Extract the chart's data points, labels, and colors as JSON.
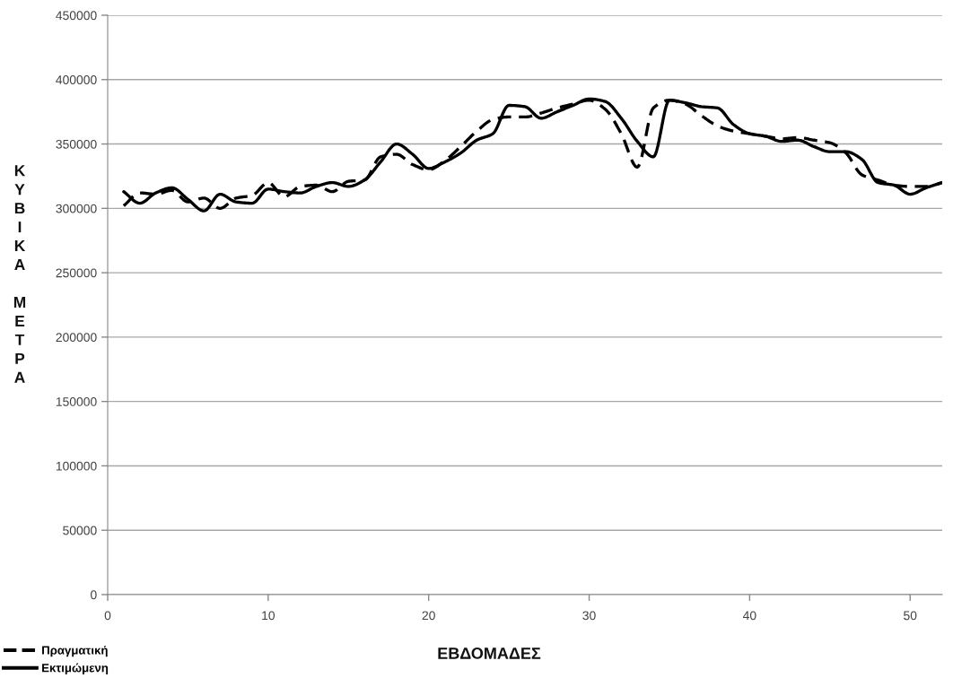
{
  "chart_data": {
    "type": "line",
    "xlabel": "ΕΒΔΟΜΑΔΕΣ",
    "ylabel": "ΚΥΒΙΚΑ ΜΕΤΡΑ",
    "x": [
      1,
      2,
      3,
      4,
      5,
      6,
      7,
      8,
      9,
      10,
      11,
      12,
      13,
      14,
      15,
      16,
      17,
      18,
      19,
      20,
      21,
      22,
      23,
      24,
      25,
      26,
      27,
      28,
      29,
      30,
      31,
      32,
      33,
      34,
      35,
      36,
      37,
      38,
      39,
      40,
      41,
      42,
      43,
      44,
      45,
      46,
      47,
      48,
      49,
      50,
      51,
      52
    ],
    "series": [
      {
        "name": "Πραγματική",
        "color": "#000000",
        "line_style": "dashed",
        "values": [
          302000,
          312000,
          311000,
          314000,
          305000,
          308000,
          300000,
          308000,
          310000,
          320000,
          309000,
          317000,
          318000,
          313000,
          321000,
          322000,
          340000,
          342000,
          334000,
          330000,
          337000,
          348000,
          360000,
          369000,
          371000,
          371000,
          374000,
          378000,
          381000,
          384000,
          377000,
          358000,
          332000,
          378000,
          384000,
          381000,
          372000,
          364000,
          360000,
          358000,
          356000,
          354000,
          355000,
          353000,
          351000,
          343000,
          326000,
          322000,
          318000,
          317000,
          317000,
          320000
        ]
      },
      {
        "name": "Εκτιμώμενη",
        "color": "#000000",
        "line_style": "solid",
        "values": [
          313000,
          304000,
          312000,
          316000,
          307000,
          298000,
          311000,
          305000,
          304000,
          315000,
          313000,
          312000,
          317000,
          320000,
          317000,
          322000,
          336000,
          350000,
          342000,
          331000,
          336000,
          343000,
          353000,
          358000,
          380000,
          379000,
          370000,
          375000,
          380000,
          385000,
          383000,
          370000,
          352000,
          340000,
          384000,
          382000,
          379000,
          378000,
          365000,
          358000,
          356000,
          352000,
          353000,
          348000,
          344000,
          344000,
          338000,
          320000,
          318000,
          311000,
          316000,
          320000
        ]
      }
    ],
    "xlim": [
      0,
      52
    ],
    "xticks": [
      0,
      10,
      20,
      30,
      40,
      50
    ],
    "ylim": [
      0,
      450000
    ],
    "yticks": [
      0,
      50000,
      100000,
      150000,
      200000,
      250000,
      300000,
      350000,
      400000,
      450000
    ],
    "grid": "y",
    "legend": "bottom left"
  }
}
